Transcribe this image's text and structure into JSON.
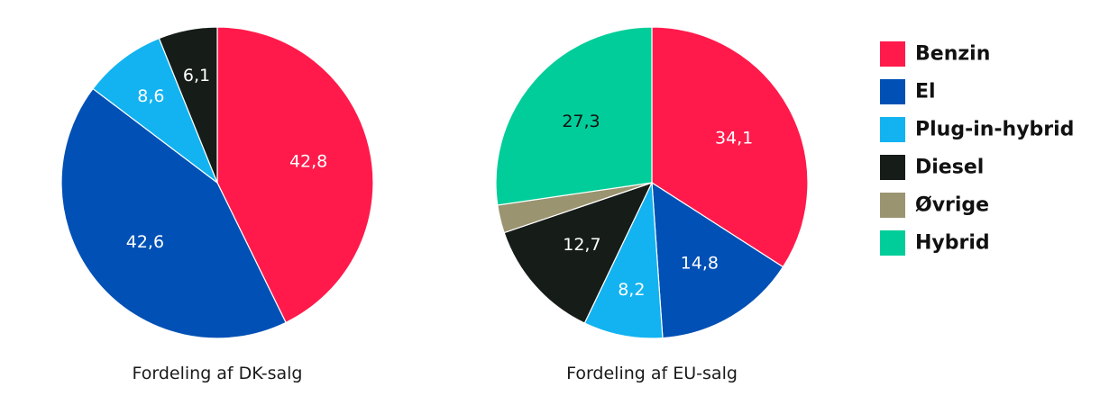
{
  "chart_data": [
    {
      "type": "pie",
      "title": "Fordeling af DK-salg",
      "slices": [
        {
          "category": "Benzin",
          "value": 42.8,
          "label": "42,8"
        },
        {
          "category": "El",
          "value": 42.6,
          "label": "42,6"
        },
        {
          "category": "Plug-in-hybrid",
          "value": 8.6,
          "label": "8,6"
        },
        {
          "category": "Diesel",
          "value": 6.1,
          "label": "6,1"
        }
      ]
    },
    {
      "type": "pie",
      "title": "Fordeling af EU-salg",
      "slices": [
        {
          "category": "Benzin",
          "value": 34.1,
          "label": "34,1"
        },
        {
          "category": "El",
          "value": 14.8,
          "label": "14,8"
        },
        {
          "category": "Plug-in-hybrid",
          "value": 8.2,
          "label": "8,2"
        },
        {
          "category": "Diesel",
          "value": 12.7,
          "label": "12,7"
        },
        {
          "category": "Øvrige",
          "value": 2.9,
          "label": ""
        },
        {
          "category": "Hybrid",
          "value": 27.3,
          "label": "27,3"
        }
      ]
    }
  ],
  "legend": {
    "placement": "right",
    "entries": [
      {
        "name": "Benzin",
        "color": "#ff1a4b"
      },
      {
        "name": "El",
        "color": "#0050b5"
      },
      {
        "name": "Plug-in-hybrid",
        "color": "#12b3f0"
      },
      {
        "name": "Diesel",
        "color": "#161c18"
      },
      {
        "name": "Øvrige",
        "color": "#9a9470"
      },
      {
        "name": "Hybrid",
        "color": "#00cd99"
      }
    ]
  },
  "label_colors": {
    "Benzin": "#ffffff",
    "El": "#ffffff",
    "Plug-in-hybrid": "#ffffff",
    "Diesel": "#ffffff",
    "Øvrige": "#ffffff",
    "Hybrid": "#111111"
  }
}
